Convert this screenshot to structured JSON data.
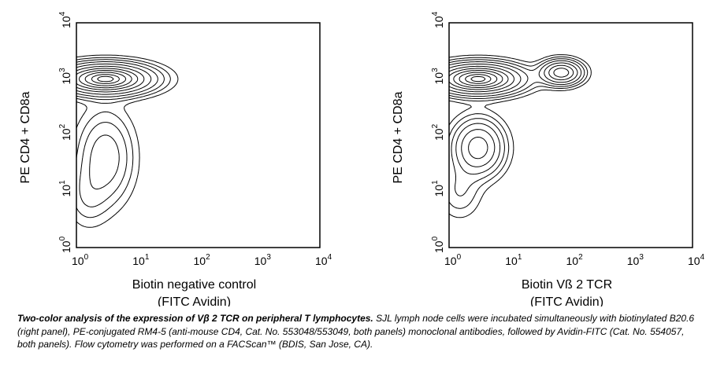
{
  "chart_data": [
    {
      "type": "contour",
      "xlabel_line1": "Biotin negative control",
      "xlabel_line2": "(FITC Avidin)",
      "ylabel": "PE CD4 + CD8a",
      "x_scale": "log",
      "y_scale": "log",
      "xlim": [
        1,
        10000
      ],
      "ylim": [
        1,
        10000
      ],
      "x_ticks": [
        {
          "base": "10",
          "exp": "0"
        },
        {
          "base": "10",
          "exp": "1"
        },
        {
          "base": "10",
          "exp": "2"
        },
        {
          "base": "10",
          "exp": "3"
        },
        {
          "base": "10",
          "exp": "4"
        }
      ],
      "y_ticks": [
        {
          "base": "10",
          "exp": "0"
        },
        {
          "base": "10",
          "exp": "1"
        },
        {
          "base": "10",
          "exp": "2"
        },
        {
          "base": "10",
          "exp": "3"
        },
        {
          "base": "10",
          "exp": "4"
        }
      ],
      "populations": [
        {
          "x": 3,
          "y": 1000,
          "sx": 0.45,
          "sy": 0.16,
          "weight": 1.0
        },
        {
          "x": 3,
          "y": 40,
          "sx": 0.28,
          "sy": 0.5,
          "weight": 0.22
        },
        {
          "x": 1.5,
          "y": 8,
          "sx": 0.22,
          "sy": 0.35,
          "weight": 0.08
        }
      ]
    },
    {
      "type": "contour",
      "xlabel_line1": "Biotin Vß 2 TCR",
      "xlabel_line2": "(FITC Avidin)",
      "ylabel": "PE CD4 + CD8a",
      "x_scale": "log",
      "y_scale": "log",
      "xlim": [
        1,
        10000
      ],
      "ylim": [
        1,
        10000
      ],
      "x_ticks": [
        {
          "base": "10",
          "exp": "0"
        },
        {
          "base": "10",
          "exp": "1"
        },
        {
          "base": "10",
          "exp": "2"
        },
        {
          "base": "10",
          "exp": "3"
        },
        {
          "base": "10",
          "exp": "4"
        }
      ],
      "y_ticks": [
        {
          "base": "10",
          "exp": "0"
        },
        {
          "base": "10",
          "exp": "1"
        },
        {
          "base": "10",
          "exp": "2"
        },
        {
          "base": "10",
          "exp": "3"
        },
        {
          "base": "10",
          "exp": "4"
        }
      ],
      "populations": [
        {
          "x": 3,
          "y": 1000,
          "sx": 0.42,
          "sy": 0.16,
          "weight": 1.0
        },
        {
          "x": 70,
          "y": 1300,
          "sx": 0.2,
          "sy": 0.13,
          "weight": 0.6
        },
        {
          "x": 3,
          "y": 60,
          "sx": 0.25,
          "sy": 0.3,
          "weight": 0.45
        },
        {
          "x": 1.5,
          "y": 10,
          "sx": 0.22,
          "sy": 0.3,
          "weight": 0.1
        }
      ]
    }
  ],
  "caption": {
    "lead": "Two-color analysis of the expression of Vβ 2 TCR on peripheral T lymphocytes.",
    "body": " SJL lymph node cells were incubated simultaneously with biotinylated B20.6 (right panel), PE-conjugated RM4-5 (anti-mouse CD4, Cat. No. 553048/553049, both panels) monoclonal antibodies, followed by Avidin-FITC (Cat. No. 554057, both panels). Flow cytometry was performed on a FACScan™ (BDIS, San Jose, CA)."
  }
}
